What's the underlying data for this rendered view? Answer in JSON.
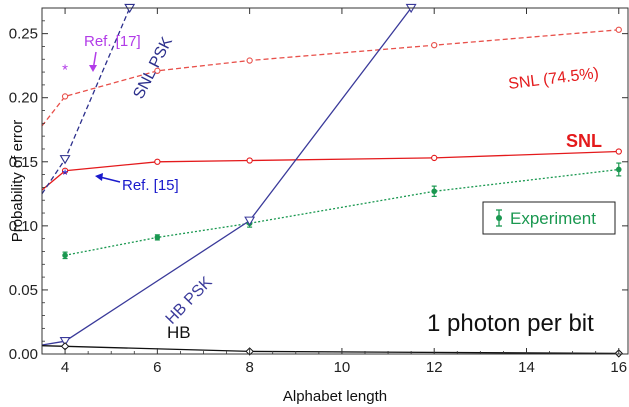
{
  "chart_data": {
    "type": "line",
    "xlabel": "Alphabet length",
    "ylabel": "Probability of error",
    "xlim": [
      3.5,
      16.2
    ],
    "ylim": [
      0,
      0.27
    ],
    "xticks": [
      "4",
      "6",
      "8",
      "10",
      "12",
      "14",
      "16"
    ],
    "yticks": [
      "0.00",
      "0.05",
      "0.10",
      "0.15",
      "0.20",
      "0.25"
    ],
    "grid": false,
    "legend_position": "right",
    "series": [
      {
        "name": "SNL (74.5%)",
        "color": "#e8504a",
        "style": "dashed",
        "marker": "circle",
        "points": [
          [
            3.5,
            0.178
          ],
          [
            4,
            0.201
          ],
          [
            6,
            0.221
          ],
          [
            8,
            0.229
          ],
          [
            12,
            0.241
          ],
          [
            16,
            0.253
          ]
        ]
      },
      {
        "name": "SNL",
        "color": "#e41a1c",
        "style": "solid",
        "marker": "circle",
        "points": [
          [
            3.5,
            0.128
          ],
          [
            4,
            0.143
          ],
          [
            6,
            0.15
          ],
          [
            8,
            0.151
          ],
          [
            12,
            0.153
          ],
          [
            16,
            0.158
          ]
        ]
      },
      {
        "name": "Experiment",
        "color": "#1a9850",
        "style": "dotted",
        "marker": "filled-circle",
        "points": [
          [
            4,
            0.077
          ],
          [
            6,
            0.091
          ],
          [
            8,
            0.102
          ],
          [
            12,
            0.127
          ],
          [
            16,
            0.144
          ]
        ],
        "errors": [
          0.0025,
          0.002,
          0.003,
          0.004,
          0.005
        ]
      },
      {
        "name": "SNL PSK",
        "color": "#2c2f8c",
        "style": "dashed",
        "marker": "triangle-down",
        "points": [
          [
            3.5,
            0.125
          ],
          [
            4,
            0.152
          ],
          [
            5.4,
            0.27
          ]
        ]
      },
      {
        "name": "HB PSK",
        "color": "#3a3a9a",
        "style": "solid",
        "marker": "triangle-down",
        "points": [
          [
            3.5,
            0.007
          ],
          [
            4,
            0.01
          ],
          [
            8,
            0.104
          ],
          [
            11.5,
            0.27
          ]
        ]
      },
      {
        "name": "HB",
        "color": "#111111",
        "style": "solid",
        "marker": "diamond",
        "points": [
          [
            3.5,
            0.0065
          ],
          [
            4,
            0.006
          ],
          [
            8,
            0.002
          ],
          [
            16,
            0.0005
          ]
        ]
      }
    ],
    "labels": {
      "snl_psk": "SNL PSK",
      "hb_psk": "HB PSK",
      "hb": "HB",
      "snl": "SNL",
      "snl_745": "SNL (74.5%)",
      "ref17": "Ref. [17]",
      "ref15": "Ref. [15]",
      "legend": "Experiment",
      "photon": "1 photon per bit"
    },
    "annotations": [
      {
        "text": "Ref. [17]",
        "x": 4,
        "y": 0.222,
        "marker": "*",
        "color": "#b23ce8"
      },
      {
        "text": "Ref. [15]",
        "x": 4,
        "y": 0.14,
        "marker": "*",
        "color": "#1a1acc"
      }
    ]
  }
}
